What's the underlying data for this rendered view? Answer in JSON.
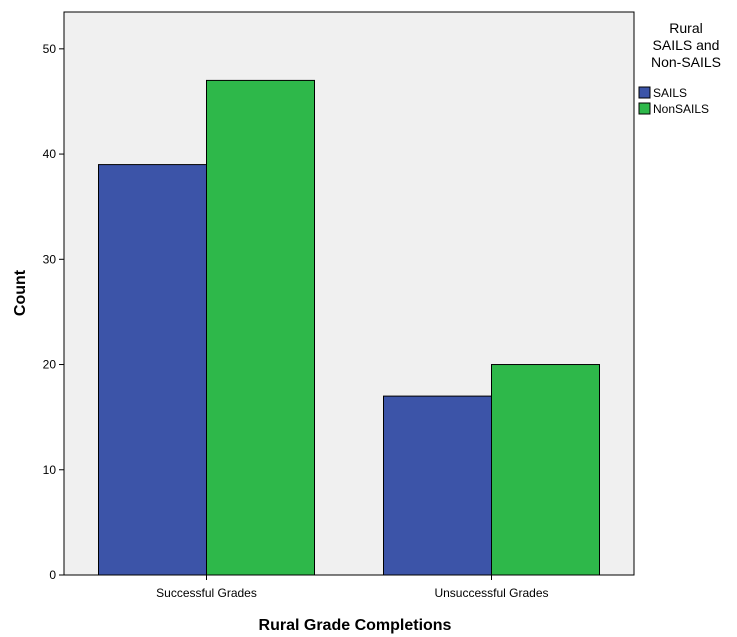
{
  "chart_data": {
    "type": "bar",
    "title": "",
    "xlabel": "Rural Grade Completions",
    "ylabel": "Count",
    "categories": [
      "Successful Grades",
      "Unsuccessful Grades"
    ],
    "series": [
      {
        "name": "SAILS",
        "values": [
          39,
          17
        ],
        "color": "#3c54a8"
      },
      {
        "name": "NonSAILS",
        "values": [
          47,
          20
        ],
        "color": "#2eb84a"
      }
    ],
    "ylim": [
      0,
      53.5
    ],
    "yticks": [
      0,
      10,
      20,
      30,
      40,
      50
    ],
    "grid": false,
    "plot_background": "#f0f0f0",
    "legend": {
      "title_lines": [
        "Rural",
        "SAILS and",
        "Non-SAILS"
      ],
      "position": "top-right"
    }
  }
}
